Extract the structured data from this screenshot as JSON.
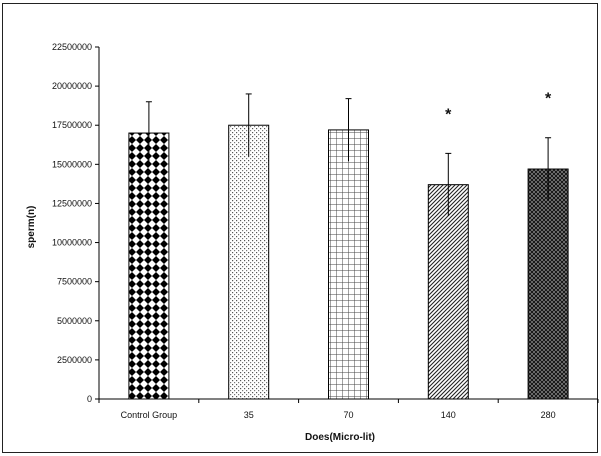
{
  "chart_data": {
    "type": "bar",
    "categories": [
      "Control Group",
      "35",
      "70",
      "140",
      "280"
    ],
    "values": [
      17000000,
      17500000,
      17200000,
      13700000,
      14700000
    ],
    "errors": [
      2000000,
      2000000,
      2000000,
      2000000,
      2000000
    ],
    "significance": [
      "",
      "",
      "",
      "*",
      "*"
    ],
    "xlabel": "Does(Micro-lit)",
    "ylabel": "sperm(n)",
    "ylim": [
      0,
      22500000
    ],
    "yticks": [
      0,
      2500000,
      5000000,
      7500000,
      10000000,
      12500000,
      15000000,
      17500000,
      20000000,
      22500000
    ],
    "grid": false,
    "legend": "none"
  }
}
